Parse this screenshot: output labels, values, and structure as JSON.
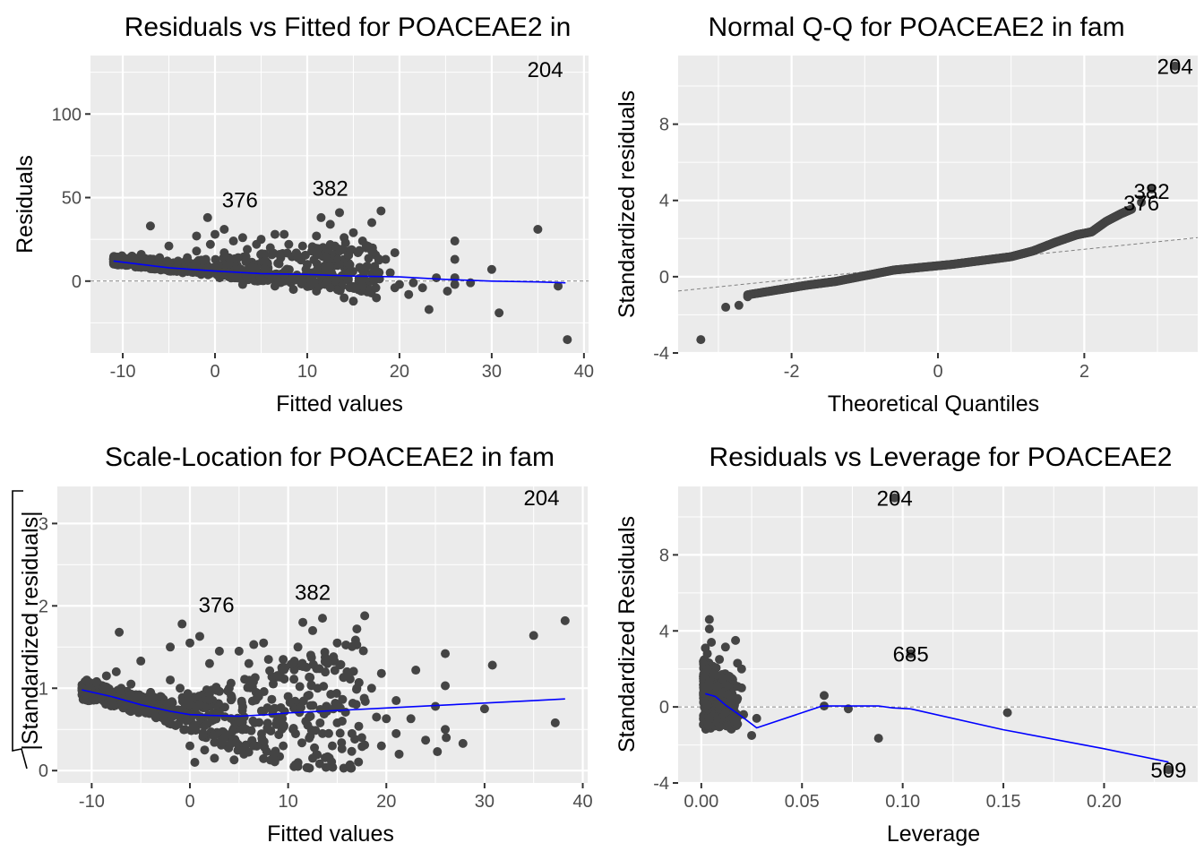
{
  "chart_data": [
    {
      "id": "resid-fitted",
      "type": "scatter",
      "title": "Residuals vs Fitted for POACEAE2 in",
      "xlabel": "Fitted values",
      "ylabel": "Residuals",
      "xlim": [
        -13.5,
        40.5
      ],
      "ylim": [
        -43,
        135
      ],
      "xticks": [
        -10,
        0,
        10,
        20,
        30,
        40
      ],
      "yticks": [
        0,
        50,
        100
      ],
      "grid": true,
      "reference_line": {
        "type": "horizontal",
        "y": 0,
        "style": "dashed"
      },
      "smooth": {
        "x": [
          -11,
          -5,
          0,
          5,
          10,
          15,
          20,
          25,
          30,
          35,
          38
        ],
        "y": [
          12,
          8,
          6,
          4.5,
          4,
          3,
          2.5,
          1,
          0,
          -0.5,
          -1
        ]
      },
      "points_summary": "about 700 points, dense band from x -11 to 18 with residuals -12 to 30",
      "points": [
        [
          -11,
          13
        ],
        [
          -10.5,
          14
        ],
        [
          -10,
          12
        ],
        [
          -9.5,
          11
        ],
        [
          -9,
          15
        ],
        [
          -8.5,
          10
        ],
        [
          -8,
          16
        ],
        [
          -7.5,
          9
        ],
        [
          -7,
          33
        ],
        [
          -7,
          12
        ],
        [
          -6.5,
          8
        ],
        [
          -6,
          14
        ],
        [
          -5.5,
          7
        ],
        [
          -5,
          21
        ],
        [
          -5,
          11
        ],
        [
          -4.5,
          6
        ],
        [
          -4,
          12
        ],
        [
          -3.5,
          5
        ],
        [
          -3,
          14
        ],
        [
          -2.5,
          9
        ],
        [
          -2,
          27
        ],
        [
          -2,
          18
        ],
        [
          -1.5,
          4
        ],
        [
          -1,
          13
        ],
        [
          -0.8,
          38
        ],
        [
          -0.5,
          22
        ],
        [
          0,
          28
        ],
        [
          0,
          8
        ],
        [
          0.5,
          2
        ],
        [
          1,
          31
        ],
        [
          1,
          17
        ],
        [
          1.5,
          10
        ],
        [
          2,
          24
        ],
        [
          2,
          3
        ],
        [
          2.5,
          14
        ],
        [
          3,
          26
        ],
        [
          3,
          -2
        ],
        [
          3.5,
          19
        ],
        [
          4,
          8
        ],
        [
          4.5,
          22
        ],
        [
          5,
          25
        ],
        [
          5,
          1
        ],
        [
          5.5,
          12
        ],
        [
          6,
          20
        ],
        [
          6.5,
          28
        ],
        [
          6.5,
          -3
        ],
        [
          7,
          16
        ],
        [
          7.5,
          28
        ],
        [
          7.5,
          4
        ],
        [
          8,
          22
        ],
        [
          8.5,
          -5
        ],
        [
          9,
          14
        ],
        [
          9.5,
          21
        ],
        [
          9.5,
          0
        ],
        [
          10,
          10
        ],
        [
          10.5,
          18
        ],
        [
          11,
          27
        ],
        [
          11,
          -6
        ],
        [
          11.5,
          38
        ],
        [
          12,
          14
        ],
        [
          12.5,
          34
        ],
        [
          12.5,
          -4
        ],
        [
          13,
          21
        ],
        [
          13.5,
          10
        ],
        [
          13.5,
          41
        ],
        [
          14,
          26
        ],
        [
          14,
          -10
        ],
        [
          14.5,
          5
        ],
        [
          15,
          29
        ],
        [
          15,
          -12
        ],
        [
          15.5,
          17
        ],
        [
          16,
          24
        ],
        [
          16,
          -3
        ],
        [
          16.5,
          9
        ],
        [
          17,
          35
        ],
        [
          17,
          18
        ],
        [
          17.5,
          6
        ],
        [
          17.5,
          -10
        ],
        [
          18,
          42
        ],
        [
          18.5,
          13
        ],
        [
          19,
          5
        ],
        [
          19.5,
          -4
        ],
        [
          19.5,
          17
        ],
        [
          20,
          -2
        ],
        [
          21,
          -8
        ],
        [
          21.5,
          -1
        ],
        [
          22.5,
          -4
        ],
        [
          23.2,
          -17
        ],
        [
          24,
          2
        ],
        [
          25.2,
          -6
        ],
        [
          26,
          24
        ],
        [
          26,
          13
        ],
        [
          26,
          2
        ],
        [
          26,
          -2
        ],
        [
          27.7,
          -1
        ],
        [
          30,
          7
        ],
        [
          30.8,
          -19
        ],
        [
          35,
          31
        ],
        [
          37.2,
          -3
        ],
        [
          38.2,
          -35
        ]
      ],
      "labels": [
        {
          "text": "204",
          "x": 35.8,
          "y": 127
        },
        {
          "text": "376",
          "x": 2.7,
          "y": 49
        },
        {
          "text": "382",
          "x": 12.5,
          "y": 56
        }
      ]
    },
    {
      "id": "normal-qq",
      "type": "scatter",
      "title": "Normal Q-Q for POACEAE2 in fam",
      "xlabel": "Theoretical Quantiles",
      "ylabel": "Standardized residuals",
      "xlim": [
        -3.55,
        3.55
      ],
      "ylim": [
        -4,
        11.6
      ],
      "xticks": [
        -2,
        0,
        2
      ],
      "yticks": [
        -4,
        0,
        4,
        8
      ],
      "grid": true,
      "reference_line": {
        "type": "abline",
        "x": [
          -3.55,
          3.55
        ],
        "y": [
          -0.75,
          2.05
        ],
        "style": "dashed"
      },
      "qq_curve": {
        "x": [
          -2.6,
          -2.2,
          -1.8,
          -1.4,
          -1.0,
          -0.6,
          -0.2,
          0.2,
          0.6,
          1.0,
          1.3,
          1.6,
          1.9,
          2.1,
          2.3,
          2.5,
          2.65
        ],
        "y": [
          -0.95,
          -0.7,
          -0.45,
          -0.25,
          0.05,
          0.35,
          0.5,
          0.65,
          0.85,
          1.05,
          1.35,
          1.8,
          2.2,
          2.35,
          2.9,
          3.3,
          3.55
        ]
      },
      "points": [
        [
          -3.24,
          -3.3
        ],
        [
          -2.9,
          -1.6
        ],
        [
          -2.72,
          -1.5
        ],
        [
          -2.6,
          -1.05
        ],
        [
          2.78,
          3.9
        ],
        [
          2.92,
          4.6
        ],
        [
          3.24,
          11.05
        ]
      ],
      "labels": [
        {
          "text": "204",
          "x": 3.24,
          "y": 11.05
        },
        {
          "text": "382",
          "x": 2.92,
          "y": 4.5
        },
        {
          "text": "376",
          "x": 2.78,
          "y": 3.9
        }
      ]
    },
    {
      "id": "scale-location",
      "type": "scatter",
      "title": "Scale-Location for POACEAE2 in fam",
      "xlabel": "Fitted values",
      "ylabel": "√|Standardized residuals|",
      "xlim": [
        -13.5,
        40.5
      ],
      "ylim": [
        -0.15,
        3.45
      ],
      "xticks": [
        -10,
        0,
        10,
        20,
        30,
        40
      ],
      "yticks": [
        0,
        1,
        2,
        3
      ],
      "grid": true,
      "smooth": {
        "x": [
          -11,
          -8,
          -5,
          -2,
          0,
          2,
          5,
          8,
          10,
          15,
          20,
          25,
          30,
          35,
          38.2
        ],
        "y": [
          0.98,
          0.9,
          0.8,
          0.72,
          0.68,
          0.67,
          0.66,
          0.68,
          0.7,
          0.73,
          0.76,
          0.79,
          0.82,
          0.85,
          0.87
        ]
      },
      "points": [
        [
          -11,
          1.0
        ],
        [
          -10.5,
          1.1
        ],
        [
          -10,
          0.95
        ],
        [
          -9.5,
          1.08
        ],
        [
          -9,
          0.9
        ],
        [
          -8.5,
          1.15
        ],
        [
          -8,
          0.85
        ],
        [
          -7.5,
          1.2
        ],
        [
          -7.2,
          1.68
        ],
        [
          -7,
          1.0
        ],
        [
          -6.5,
          0.8
        ],
        [
          -6,
          1.05
        ],
        [
          -5.5,
          0.75
        ],
        [
          -5,
          1.33
        ],
        [
          -4.5,
          0.7
        ],
        [
          -4,
          0.95
        ],
        [
          -3.5,
          0.65
        ],
        [
          -3,
          0.9
        ],
        [
          -2.5,
          0.6
        ],
        [
          -2,
          1.5
        ],
        [
          -2,
          1.1
        ],
        [
          -1.5,
          0.55
        ],
        [
          -1,
          1.0
        ],
        [
          -0.8,
          1.78
        ],
        [
          -0.5,
          0.5
        ],
        [
          0,
          1.55
        ],
        [
          0,
          0.3
        ],
        [
          0.5,
          0.1
        ],
        [
          1,
          1.63
        ],
        [
          1,
          0.8
        ],
        [
          1.5,
          0.25
        ],
        [
          2,
          1.3
        ],
        [
          2.5,
          0.15
        ],
        [
          3,
          1.45
        ],
        [
          3,
          0.7
        ],
        [
          3.5,
          0.4
        ],
        [
          4,
          1.0
        ],
        [
          4.5,
          0.13
        ],
        [
          5,
          1.45
        ],
        [
          5,
          0.6
        ],
        [
          5.5,
          0.2
        ],
        [
          6,
          1.3
        ],
        [
          6.5,
          1.53
        ],
        [
          6.5,
          0.3
        ],
        [
          7,
          0.9
        ],
        [
          7.5,
          1.55
        ],
        [
          8,
          0.5
        ],
        [
          8,
          1.35
        ],
        [
          8.5,
          0.2
        ],
        [
          9,
          0.65
        ],
        [
          9.5,
          1.35
        ],
        [
          9.5,
          0.3
        ],
        [
          10,
          0.9
        ],
        [
          10.5,
          0.5
        ],
        [
          11,
          1.5
        ],
        [
          11,
          0.05
        ],
        [
          11.5,
          1.8
        ],
        [
          12,
          0.55
        ],
        [
          12.5,
          1.7
        ],
        [
          12.5,
          0.15
        ],
        [
          13,
          1.0
        ],
        [
          13.5,
          0.45
        ],
        [
          13.5,
          1.85
        ],
        [
          14,
          1.3
        ],
        [
          14.5,
          0.3
        ],
        [
          15,
          1.55
        ],
        [
          15.5,
          0.6
        ],
        [
          16,
          1.2
        ],
        [
          16.3,
          0.07
        ],
        [
          16.5,
          0.45
        ],
        [
          17,
          1.72
        ],
        [
          17,
          1.0
        ],
        [
          17.5,
          0.4
        ],
        [
          17.8,
          1.88
        ],
        [
          18.5,
          1.0
        ],
        [
          19,
          0.65
        ],
        [
          19.5,
          0.3
        ],
        [
          19.5,
          1.18
        ],
        [
          20,
          0.63
        ],
        [
          21,
          0.85
        ],
        [
          21,
          0.45
        ],
        [
          21.3,
          0.2
        ],
        [
          22.5,
          0.63
        ],
        [
          23,
          1.22
        ],
        [
          24,
          0.37
        ],
        [
          25,
          0.78
        ],
        [
          25.2,
          0.23
        ],
        [
          26,
          1.42
        ],
        [
          26,
          1.03
        ],
        [
          26,
          0.5
        ],
        [
          26.1,
          0.4
        ],
        [
          27.8,
          0.33
        ],
        [
          30,
          0.75
        ],
        [
          30.8,
          1.28
        ],
        [
          35,
          1.64
        ],
        [
          37.2,
          0.58
        ],
        [
          38.2,
          1.82
        ]
      ],
      "labels": [
        {
          "text": "204",
          "x": 35.8,
          "y": 3.32
        },
        {
          "text": "376",
          "x": 2.7,
          "y": 2.02
        },
        {
          "text": "382",
          "x": 12.5,
          "y": 2.17
        }
      ]
    },
    {
      "id": "resid-leverage",
      "type": "scatter",
      "title": "Residuals vs Leverage for POACEAE2",
      "xlabel": "Leverage",
      "ylabel": "Standardized Residuals",
      "xlim": [
        -0.0115,
        0.2465
      ],
      "ylim": [
        -4,
        11.6
      ],
      "xticks": [
        0.0,
        0.05,
        0.1,
        0.15,
        0.2
      ],
      "xtick_labels": [
        "0.00",
        "0.05",
        "0.10",
        "0.15",
        "0.20"
      ],
      "yticks": [
        -4,
        0,
        4,
        8
      ],
      "grid": true,
      "reference_line": {
        "type": "horizontal",
        "y": 0,
        "style": "dashed"
      },
      "smooth": {
        "x": [
          0.002,
          0.007,
          0.012,
          0.02,
          0.0275,
          0.06,
          0.088,
          0.095,
          0.104,
          0.15,
          0.2,
          0.232
        ],
        "y": [
          0.7,
          0.55,
          0.1,
          -0.5,
          -1.1,
          0.05,
          0.05,
          -0.05,
          -0.1,
          -1.2,
          -2.2,
          -2.9
        ]
      },
      "points": [
        [
          0.004,
          4.6
        ],
        [
          0.004,
          4.1
        ],
        [
          0.005,
          3.4
        ],
        [
          0.002,
          3.1
        ],
        [
          0.012,
          3.15
        ],
        [
          0.017,
          3.5
        ],
        [
          0.003,
          2.8
        ],
        [
          0.009,
          2.5
        ],
        [
          0.018,
          2.3
        ],
        [
          0.02,
          2.0
        ],
        [
          0.003,
          2.0
        ],
        [
          0.006,
          1.7
        ],
        [
          0.011,
          1.5
        ],
        [
          0.014,
          1.6
        ],
        [
          0.004,
          1.3
        ],
        [
          0.008,
          1.1
        ],
        [
          0.02,
          1.0
        ],
        [
          0.002,
          0.9
        ],
        [
          0.01,
          0.7
        ],
        [
          0.005,
          0.5
        ],
        [
          0.015,
          0.2
        ],
        [
          0.003,
          0.1
        ],
        [
          0.009,
          -0.1
        ],
        [
          0.012,
          -0.3
        ],
        [
          0.016,
          -0.6
        ],
        [
          0.006,
          -0.5
        ],
        [
          0.008,
          -0.8
        ],
        [
          0.018,
          -0.9
        ],
        [
          0.004,
          -0.6
        ],
        [
          0.021,
          -0.4
        ],
        [
          0.009,
          -1.05
        ],
        [
          0.013,
          -1.0
        ],
        [
          0.025,
          -1.5
        ],
        [
          0.0275,
          -0.6
        ],
        [
          0.061,
          0.6
        ],
        [
          0.061,
          0.05
        ],
        [
          0.073,
          -0.1
        ],
        [
          0.088,
          -1.65
        ],
        [
          0.096,
          11.0
        ],
        [
          0.104,
          2.8
        ],
        [
          0.152,
          -0.3
        ],
        [
          0.232,
          -3.3
        ]
      ],
      "labels": [
        {
          "text": "204",
          "x": 0.096,
          "y": 11.0
        },
        {
          "text": "685",
          "x": 0.104,
          "y": 2.8
        },
        {
          "text": "509",
          "x": 0.232,
          "y": -3.3
        }
      ]
    }
  ]
}
